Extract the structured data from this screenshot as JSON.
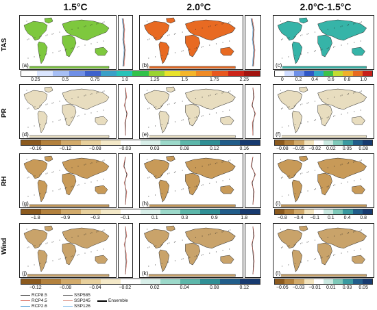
{
  "columns": [
    "1.5°C",
    "2.0°C",
    "2.0°C-1.5°C"
  ],
  "rows": [
    "TAS",
    "PR",
    "RH",
    "Wind"
  ],
  "panel_labels": [
    "(a)",
    "(b)",
    "(c)",
    "(d)",
    "(e)",
    "(f)",
    "(g)",
    "(h)",
    "(i)",
    "(j)",
    "(k)",
    "(l)"
  ],
  "colorbars": {
    "tas_main": {
      "colors": [
        "#ffffff",
        "#dbe6ff",
        "#a7bff5",
        "#6f8fe6",
        "#3e62cc",
        "#3aa0c8",
        "#27c3b8",
        "#31c24a",
        "#9ad330",
        "#e8e22a",
        "#f4b52a",
        "#f08a24",
        "#e8571e",
        "#cc2418",
        "#a2130f"
      ],
      "ticks": [
        "0.25",
        "0.5",
        "0.75",
        "1.0",
        "1.25",
        "1.5",
        "1.75",
        "2.25"
      ]
    },
    "tas_diff": {
      "colors": [
        "#ffffff",
        "#cfdcff",
        "#6e90e8",
        "#2e57c6",
        "#2ea8c6",
        "#3cc24a",
        "#c3db32",
        "#f0b02c",
        "#e86b20",
        "#c8201a"
      ],
      "ticks": [
        "0",
        "0.2",
        "0.4",
        "0.6",
        "0.8",
        "1.0"
      ]
    },
    "pr_main": {
      "colors": [
        "#8c5a1e",
        "#b3813d",
        "#d2aa6a",
        "#e8d09c",
        "#f4e9c8",
        "#ffffff",
        "#d8efe9",
        "#9cd9ca",
        "#5db7aa",
        "#2f8f95",
        "#215d8a",
        "#173a70"
      ],
      "ticks": [
        "−0.16",
        "−0.12",
        "−0.08",
        "−0.03",
        "0.03",
        "0.08",
        "0.12",
        "0.16"
      ]
    },
    "pr_diff": {
      "colors": [
        "#8c5a1e",
        "#b3813d",
        "#d2aa6a",
        "#f2e3bd",
        "#ffffff",
        "#cbe9e1",
        "#7fc9b9",
        "#3a9aa0",
        "#215d8a",
        "#173a70"
      ],
      "ticks": [
        "−0.08",
        "−0.05",
        "−0.02",
        "0.02",
        "0.05",
        "0.08"
      ]
    },
    "rh_main": {
      "colors": [
        "#8c5a1e",
        "#b3813d",
        "#d2aa6a",
        "#e8d09c",
        "#f4e9c8",
        "#ffffff",
        "#d8efe9",
        "#9cd9ca",
        "#5db7aa",
        "#2f8f95",
        "#215d8a",
        "#173a70"
      ],
      "ticks": [
        "−1.8",
        "−0.9",
        "−0.3",
        "−0.1",
        "0.1",
        "0.3",
        "0.9",
        "1.8"
      ]
    },
    "rh_diff": {
      "colors": [
        "#8c5a1e",
        "#b3813d",
        "#d2aa6a",
        "#f2e3bd",
        "#ffffff",
        "#cbe9e1",
        "#7fc9b9",
        "#3a9aa0",
        "#215d8a",
        "#173a70"
      ],
      "ticks": [
        "−0.8",
        "−0.4",
        "−0.1",
        "0.1",
        "0.4",
        "0.8"
      ]
    },
    "wind_main": {
      "colors": [
        "#8c5a1e",
        "#b3813d",
        "#d2aa6a",
        "#e8d09c",
        "#f4e9c8",
        "#ffffff",
        "#d8efe9",
        "#9cd9ca",
        "#5db7aa",
        "#2f8f95",
        "#215d8a",
        "#173a70"
      ],
      "ticks": [
        "−0.12",
        "−0.08",
        "−0.04",
        "−0.02",
        "0.02",
        "0.04",
        "0.08",
        "0.12"
      ]
    },
    "wind_diff": {
      "colors": [
        "#8c5a1e",
        "#b3813d",
        "#d2aa6a",
        "#f2e3bd",
        "#ffffff",
        "#cbe9e1",
        "#7fc9b9",
        "#3a9aa0",
        "#215d8a",
        "#173a70"
      ],
      "ticks": [
        "−0.05",
        "−0.03",
        "−0.01",
        "0.01",
        "0.03",
        "0.05"
      ]
    }
  },
  "map_fill": {
    "tas_15": "#7ec83e",
    "tas_20": "#e86a22",
    "tas_diff": "#36b4a8",
    "pr": "#e8ddbf",
    "rh": "#c89a58",
    "wind": "#c9a36a"
  },
  "legend": {
    "items": [
      {
        "label": "RCP8.5",
        "color": "#333333"
      },
      {
        "label": "RCP4.5",
        "color": "#d04a3a"
      },
      {
        "label": "RCP2.6",
        "color": "#3a8fd0"
      },
      {
        "label": "SSP585",
        "color": "#555555"
      },
      {
        "label": "SSP245",
        "color": "#d88070"
      },
      {
        "label": "SSP126",
        "color": "#7ab8e8"
      },
      {
        "label": "Ensemble",
        "color": "#000000"
      }
    ]
  }
}
